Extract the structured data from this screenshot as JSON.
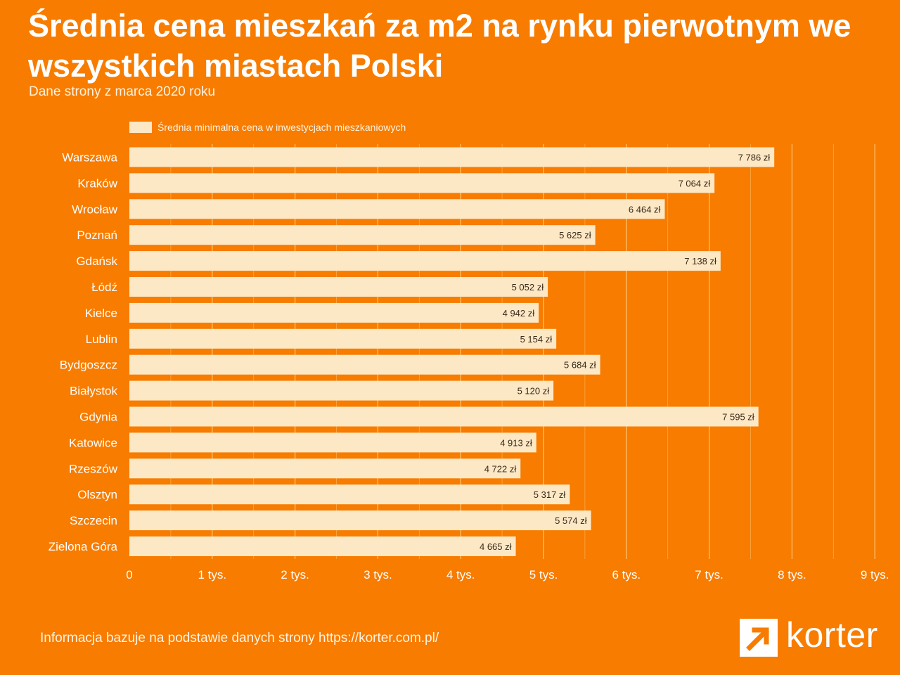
{
  "header": {
    "title": "Średnia cena mieszkań za m2 na rynku pierwotnym we wszystkich miastach Polski",
    "subtitle": "Dane strony z marca 2020 roku"
  },
  "footer": {
    "note": "Informacja bazuje na podstawie danych strony https://korter.com.pl/",
    "logo_text": "korter"
  },
  "colors": {
    "background": "#f77c00",
    "bar": "#fde8c6",
    "grid": "#ffcf80",
    "label_text": "#3a2a1a",
    "axis_text": "#ffffff"
  },
  "icons": {
    "logo_mark": "arrow-up-right-icon"
  },
  "chart_data": {
    "type": "bar",
    "orientation": "horizontal",
    "title": "Średnia cena mieszkań za m2 na rynku pierwotnym we wszystkich miastach Polski",
    "subtitle": "Dane strony z marca 2020 roku",
    "categories": [
      "Warszawa",
      "Kraków",
      "Wrocław",
      "Poznań",
      "Gdańsk",
      "Łódź",
      "Kielce",
      "Lublin",
      "Bydgoszcz",
      "Białystok",
      "Gdynia",
      "Katowice",
      "Rzeszów",
      "Olsztyn",
      "Szczecin",
      "Zielona Góra"
    ],
    "series": [
      {
        "name": "Średnia minimalna cena w inwestycjach mieszkaniowych",
        "values": [
          7786,
          7064,
          6464,
          5625,
          7138,
          5052,
          4942,
          5154,
          5684,
          5120,
          7595,
          4913,
          4722,
          5317,
          5574,
          4665
        ],
        "value_labels": [
          "7 786 zł",
          "7 064 zł",
          "6 464 zł",
          "5 625 zł",
          "7 138 zł",
          "5 052 zł",
          "4 942 zł",
          "5 154 zł",
          "5 684 zł",
          "5 120 zł",
          "7 595 zł",
          "4 913 zł",
          "4 722 zł",
          "5 317 zł",
          "5 574 zł",
          "4 665 zł"
        ]
      }
    ],
    "x_ticks": [
      0,
      1000,
      2000,
      3000,
      4000,
      5000,
      6000,
      7000,
      8000,
      9000
    ],
    "x_tick_labels": [
      "0",
      "1 tys.",
      "2 tys.",
      "3 tys.",
      "4 tys.",
      "5 tys.",
      "6 tys.",
      "7 tys.",
      "8 tys.",
      "9 tys."
    ],
    "xlim": [
      0,
      9000
    ],
    "xlabel": "",
    "ylabel": "",
    "grid": true,
    "legend": "top-left"
  }
}
